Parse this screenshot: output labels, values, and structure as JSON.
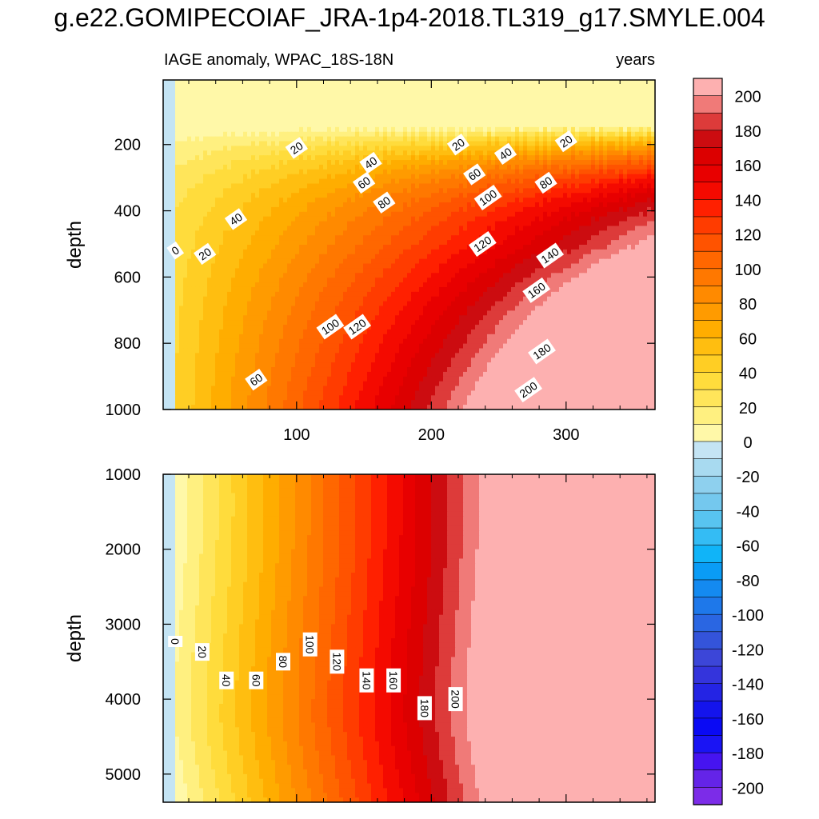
{
  "title": "g.e22.GOMIPECOIAF_JRA-1p4-2018.TL319_g17.SMYLE.004",
  "chart_data": [
    {
      "type": "heatmap",
      "panel": "upper",
      "left_title": "IAGE anomaly, WPAC_18S-18N",
      "right_title": "years",
      "xlabel": "",
      "ylabel": "depth",
      "xlim": [
        1,
        366
      ],
      "ylim": [
        1000,
        5
      ],
      "y_reversed": true,
      "x_ticks": [
        100,
        200,
        300
      ],
      "y_ticks": [
        200,
        400,
        600,
        800,
        1000
      ],
      "contour_labels": [
        {
          "value": "0",
          "x": 10,
          "y": 520
        },
        {
          "value": "20",
          "x": 32,
          "y": 530
        },
        {
          "value": "60",
          "x": 70,
          "y": 910
        },
        {
          "value": "40",
          "x": 55,
          "y": 425
        },
        {
          "value": "100",
          "x": 125,
          "y": 750
        },
        {
          "value": "120",
          "x": 145,
          "y": 750
        },
        {
          "value": "20",
          "x": 100,
          "y": 210
        },
        {
          "value": "40",
          "x": 155,
          "y": 255
        },
        {
          "value": "60",
          "x": 150,
          "y": 315
        },
        {
          "value": "80",
          "x": 165,
          "y": 375
        },
        {
          "value": "20",
          "x": 220,
          "y": 200
        },
        {
          "value": "40",
          "x": 255,
          "y": 228
        },
        {
          "value": "60",
          "x": 232,
          "y": 290
        },
        {
          "value": "80",
          "x": 285,
          "y": 315
        },
        {
          "value": "100",
          "x": 242,
          "y": 360
        },
        {
          "value": "120",
          "x": 238,
          "y": 500
        },
        {
          "value": "20",
          "x": 300,
          "y": 190
        },
        {
          "value": "140",
          "x": 288,
          "y": 535
        },
        {
          "value": "160",
          "x": 278,
          "y": 640
        },
        {
          "value": "180",
          "x": 282,
          "y": 825
        },
        {
          "value": "200",
          "x": 272,
          "y": 940
        }
      ]
    },
    {
      "type": "heatmap",
      "panel": "lower",
      "xlabel": "",
      "ylabel": "depth",
      "xlim": [
        1,
        366
      ],
      "ylim": [
        5375,
        1000
      ],
      "y_reversed": true,
      "y_ticks": [
        1000,
        2000,
        3000,
        4000,
        5000
      ],
      "contour_labels": [
        {
          "value": "0",
          "x": 10,
          "y": 3230
        },
        {
          "value": "20",
          "x": 30,
          "y": 3370
        },
        {
          "value": "40",
          "x": 48,
          "y": 3750
        },
        {
          "value": "60",
          "x": 70,
          "y": 3750
        },
        {
          "value": "80",
          "x": 90,
          "y": 3500
        },
        {
          "value": "100",
          "x": 110,
          "y": 3270
        },
        {
          "value": "120",
          "x": 130,
          "y": 3500
        },
        {
          "value": "140",
          "x": 152,
          "y": 3750
        },
        {
          "value": "160",
          "x": 172,
          "y": 3750
        },
        {
          "value": "180",
          "x": 195,
          "y": 4120
        },
        {
          "value": "200",
          "x": 218,
          "y": 4000
        }
      ]
    }
  ],
  "colorbar": {
    "levels": [
      -210,
      -200,
      -190,
      -180,
      -170,
      -160,
      -150,
      -140,
      -130,
      -120,
      -110,
      -100,
      -90,
      -80,
      -70,
      -60,
      -50,
      -40,
      -30,
      -20,
      -10,
      0,
      10,
      20,
      30,
      40,
      50,
      60,
      70,
      80,
      90,
      100,
      110,
      120,
      130,
      140,
      150,
      160,
      170,
      180,
      190,
      200,
      210
    ],
    "labels": [
      "200",
      "180",
      "160",
      "140",
      "120",
      "100",
      "80",
      "60",
      "40",
      "20",
      "0",
      "-20",
      "-40",
      "-60",
      "-80",
      "-100",
      "-120",
      "-140",
      "-160",
      "-180",
      "-200"
    ],
    "colors_top_to_bottom": [
      "#fdb0b0",
      "#f07a78",
      "#dd3b3a",
      "#cc0c10",
      "#dc0000",
      "#e80000",
      "#f40a00",
      "#ff2000",
      "#ff3c00",
      "#ff5300",
      "#ff6700",
      "#ff7800",
      "#ff8a00",
      "#ff9b00",
      "#ffad00",
      "#ffbe10",
      "#ffce24",
      "#ffdc3c",
      "#ffe55a",
      "#fff080",
      "#fff8a8",
      "#c4e4f4",
      "#a8daf0",
      "#8ed0ee",
      "#74c8ee",
      "#58c4f0",
      "#34bcf4",
      "#10b4f8",
      "#0a9cf6",
      "#148af0",
      "#1e78ea",
      "#2a66e2",
      "#3454da",
      "#3c46d8",
      "#3434dc",
      "#2424e4",
      "#1414ec",
      "#0a0af4",
      "#1a14f4",
      "#4614f0",
      "#6424e8",
      "#7c2ce8"
    ]
  }
}
